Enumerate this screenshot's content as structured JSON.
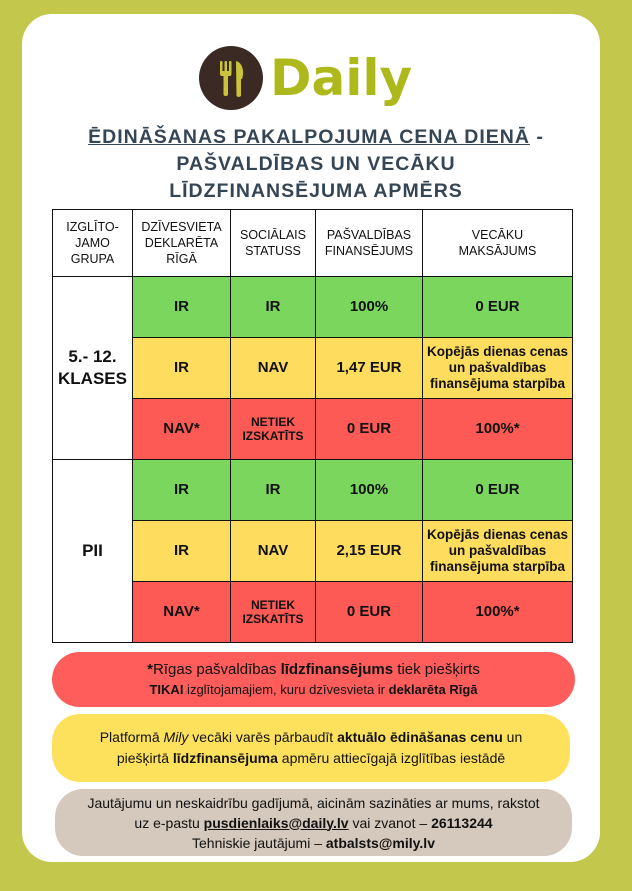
{
  "logo": {
    "brand": "Daily"
  },
  "title": {
    "line1": "ĒDINĀŠANAS PAKALPOJUMA CENA DIENĀ",
    "line1_suffix": " -",
    "line2": "PAŠVALDĪBAS UN VECĀKU",
    "line3": "LĪDZFINANSĒJUMA APMĒRS"
  },
  "table": {
    "header": [
      "IZGLĪTO-\nJAMO\nGRUPA",
      "DZĪVESVIETA\nDEKLARĒTA\nRĪGĀ",
      "SOCIĀLAIS\nSTATUSS",
      "PAŠVALDĪBAS\nFINANSĒJUMS",
      "VECĀKU\nMAKSĀJUMS"
    ],
    "groups": [
      {
        "name": "5.- 12.\nKLASES",
        "rows": [
          [
            "IR",
            "IR",
            "100%",
            "0 EUR"
          ],
          [
            "IR",
            "NAV",
            "1,47 EUR",
            "Kopējās dienas cenas un pašvaldības finansējuma starpība"
          ],
          [
            "NAV*",
            "NETIEK IZSKATĪTS",
            "0 EUR",
            "100%*"
          ]
        ]
      },
      {
        "name": "PII",
        "rows": [
          [
            "IR",
            "IR",
            "100%",
            "0 EUR"
          ],
          [
            "IR",
            "NAV",
            "2,15 EUR",
            "Kopējās dienas cenas un pašvaldības finansējuma starpība"
          ],
          [
            "NAV*",
            "NETIEK IZSKATĪTS",
            "0 EUR",
            "100%*"
          ]
        ]
      }
    ]
  },
  "notes": [
    {
      "lines": [
        [
          "*",
          "Rīgas pašvaldības ",
          "līdzfinansējums",
          " tiek piešķirts"
        ],
        [
          "TIKAI",
          " izglītojamajiem, kuru dzīvesvieta ir ",
          "deklarēta Rīgā"
        ]
      ]
    },
    {
      "lines": [
        [
          "Platformā ",
          "Mily",
          " vecāki varēs pārbaudīt ",
          "aktuālo ēdināšanas cenu",
          " un"
        ],
        [
          "piešķirtā ",
          "līdzfinansējuma",
          " apmēru attiecīgajā izglītības iestādē"
        ]
      ]
    },
    {
      "lines": [
        [
          "Jautājumu un neskaidrību gadījumā, aicinām sazināties ar mums, rakstot"
        ],
        [
          "uz e-pastu ",
          "pusdienlaiks@daily.lv",
          " vai zvanot – ",
          "26113244"
        ],
        [
          "Tehniskie jautājumi – ",
          "atbalsts@mily.lv"
        ]
      ]
    }
  ]
}
